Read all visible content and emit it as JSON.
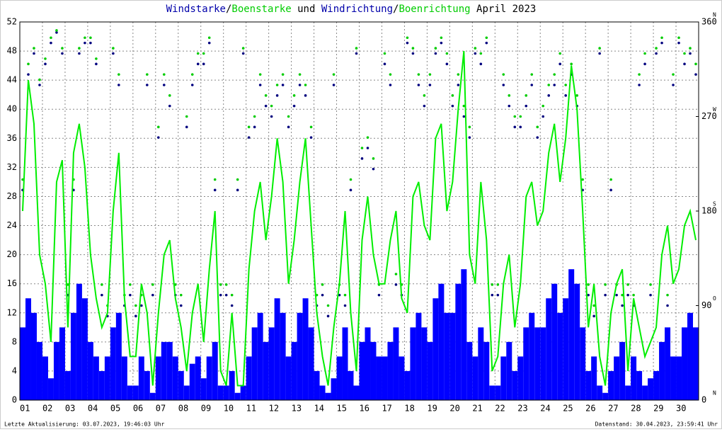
{
  "chart_data": {
    "type": "wind",
    "title_separator": "/",
    "title_joiner": "und",
    "title_period": "April 2023",
    "footer_left": "Letzte Aktualisierung: 03.07.2023, 19:46:03 Uhr",
    "footer_right": "Datenstand: 30.04.2023, 23:59:41 Uhr",
    "xlim": [
      1,
      31
    ],
    "xticks": [
      {
        "value": 1,
        "label": "01"
      },
      {
        "value": 2,
        "label": "02"
      },
      {
        "value": 3,
        "label": "03"
      },
      {
        "value": 4,
        "label": "04"
      },
      {
        "value": 5,
        "label": "05"
      },
      {
        "value": 6,
        "label": "06"
      },
      {
        "value": 7,
        "label": "07"
      },
      {
        "value": 8,
        "label": "08"
      },
      {
        "value": 9,
        "label": "09"
      },
      {
        "value": 10,
        "label": "10"
      },
      {
        "value": 11,
        "label": "11"
      },
      {
        "value": 12,
        "label": "12"
      },
      {
        "value": 13,
        "label": "13"
      },
      {
        "value": 14,
        "label": "14"
      },
      {
        "value": 15,
        "label": "15"
      },
      {
        "value": 16,
        "label": "16"
      },
      {
        "value": 17,
        "label": "17"
      },
      {
        "value": 18,
        "label": "18"
      },
      {
        "value": 19,
        "label": "19"
      },
      {
        "value": 20,
        "label": "20"
      },
      {
        "value": 21,
        "label": "21"
      },
      {
        "value": 22,
        "label": "22"
      },
      {
        "value": 23,
        "label": "23"
      },
      {
        "value": 24,
        "label": "24"
      },
      {
        "value": 25,
        "label": "25"
      },
      {
        "value": 26,
        "label": "26"
      },
      {
        "value": 27,
        "label": "27"
      },
      {
        "value": 28,
        "label": "28"
      },
      {
        "value": 29,
        "label": "29"
      },
      {
        "value": 30,
        "label": "30"
      }
    ],
    "ylim": [
      0,
      52
    ],
    "yticks": [
      0,
      4,
      8,
      12,
      16,
      20,
      24,
      28,
      32,
      36,
      40,
      44,
      48,
      52
    ],
    "y2lim": [
      0,
      360
    ],
    "y2ticks": [
      0,
      90,
      180,
      270,
      360
    ],
    "y2_compass": [
      "N",
      "O",
      "S",
      "W",
      "N"
    ],
    "grid": true,
    "x": [
      1,
      1.25,
      1.5,
      1.75,
      2,
      2.25,
      2.5,
      2.75,
      3,
      3.25,
      3.5,
      3.75,
      4,
      4.25,
      4.5,
      4.75,
      5,
      5.25,
      5.5,
      5.75,
      6,
      6.25,
      6.5,
      6.75,
      7,
      7.25,
      7.5,
      7.75,
      8,
      8.25,
      8.5,
      8.75,
      9,
      9.25,
      9.5,
      9.75,
      10,
      10.25,
      10.5,
      10.75,
      11,
      11.25,
      11.5,
      11.75,
      12,
      12.25,
      12.5,
      12.75,
      13,
      13.25,
      13.5,
      13.75,
      14,
      14.25,
      14.5,
      14.75,
      15,
      15.25,
      15.5,
      15.75,
      16,
      16.25,
      16.5,
      16.75,
      17,
      17.25,
      17.5,
      17.75,
      18,
      18.25,
      18.5,
      18.75,
      19,
      19.25,
      19.5,
      19.75,
      20,
      20.25,
      20.5,
      20.75,
      21,
      21.25,
      21.5,
      21.75,
      22,
      22.25,
      22.5,
      22.75,
      23,
      23.25,
      23.5,
      23.75,
      24,
      24.25,
      24.5,
      24.75,
      25,
      25.25,
      25.5,
      25.75,
      26,
      26.25,
      26.5,
      26.75,
      27,
      27.25,
      27.5,
      27.75,
      28,
      28.25,
      28.5,
      28.75,
      29,
      29.25,
      29.5,
      29.75,
      30,
      30.25,
      30.5,
      30.75
    ],
    "series": [
      {
        "name": "Windstarke",
        "color": "#0000ff",
        "kind": "speed",
        "values": [
          10,
          14,
          12,
          8,
          6,
          3,
          8,
          10,
          4,
          12,
          16,
          14,
          8,
          6,
          4,
          6,
          10,
          12,
          6,
          2,
          2,
          6,
          4,
          1,
          6,
          8,
          8,
          6,
          4,
          2,
          5,
          6,
          3,
          6,
          8,
          2,
          2,
          4,
          1,
          2,
          6,
          10,
          12,
          8,
          10,
          14,
          12,
          6,
          8,
          12,
          14,
          10,
          4,
          2,
          1,
          3,
          6,
          10,
          4,
          2,
          8,
          10,
          8,
          6,
          6,
          8,
          10,
          6,
          4,
          10,
          12,
          10,
          8,
          14,
          16,
          12,
          12,
          16,
          18,
          8,
          6,
          10,
          8,
          2,
          2,
          6,
          8,
          4,
          6,
          10,
          12,
          10,
          10,
          14,
          16,
          12,
          14,
          18,
          16,
          10,
          4,
          6,
          2,
          1,
          4,
          6,
          8,
          2,
          6,
          4,
          2,
          3,
          4,
          8,
          10,
          6,
          6,
          10,
          12,
          10
        ]
      },
      {
        "name": "Boenstarke",
        "color": "#00ee00",
        "kind": "gust",
        "values": [
          26,
          44,
          38,
          20,
          16,
          8,
          30,
          33,
          10,
          34,
          38,
          32,
          20,
          14,
          10,
          12,
          26,
          34,
          14,
          6,
          6,
          16,
          12,
          2,
          12,
          20,
          22,
          14,
          10,
          4,
          12,
          16,
          8,
          18,
          26,
          4,
          2,
          12,
          2,
          2,
          18,
          26,
          30,
          22,
          28,
          36,
          30,
          16,
          22,
          30,
          36,
          24,
          12,
          6,
          2,
          10,
          16,
          26,
          12,
          4,
          22,
          28,
          20,
          16,
          16,
          22,
          26,
          14,
          12,
          28,
          30,
          24,
          22,
          36,
          38,
          26,
          30,
          40,
          48,
          20,
          16,
          30,
          22,
          4,
          6,
          16,
          20,
          10,
          16,
          28,
          30,
          24,
          26,
          34,
          38,
          30,
          36,
          46,
          40,
          26,
          10,
          16,
          6,
          2,
          12,
          16,
          18,
          4,
          14,
          10,
          6,
          8,
          10,
          20,
          24,
          16,
          18,
          24,
          26,
          22
        ]
      },
      {
        "name": "Windrichtung",
        "color": "#00007f",
        "kind": "direction",
        "axis": "y2",
        "values": [
          200,
          310,
          330,
          300,
          320,
          340,
          350,
          330,
          100,
          200,
          330,
          340,
          340,
          320,
          100,
          80,
          330,
          300,
          90,
          100,
          80,
          90,
          300,
          100,
          250,
          300,
          280,
          100,
          90,
          260,
          300,
          320,
          320,
          340,
          200,
          100,
          100,
          90,
          200,
          330,
          250,
          260,
          300,
          280,
          270,
          290,
          300,
          260,
          280,
          300,
          290,
          250,
          90,
          100,
          80,
          300,
          100,
          90,
          200,
          330,
          230,
          240,
          220,
          100,
          320,
          300,
          110,
          100,
          340,
          330,
          300,
          280,
          300,
          330,
          340,
          320,
          280,
          300,
          270,
          250,
          330,
          320,
          340,
          100,
          100,
          300,
          280,
          260,
          260,
          280,
          300,
          250,
          270,
          290,
          300,
          320,
          290,
          310,
          280,
          200,
          100,
          80,
          330,
          100,
          200,
          100,
          90,
          100,
          90,
          300,
          320,
          100,
          330,
          340,
          90,
          300,
          340,
          320,
          330,
          310
        ]
      },
      {
        "name": "Boenrichtung",
        "color": "#00cc00",
        "kind": "direction",
        "axis": "y2",
        "values": [
          210,
          320,
          335,
          305,
          325,
          345,
          352,
          335,
          110,
          210,
          335,
          345,
          345,
          325,
          110,
          90,
          335,
          310,
          100,
          110,
          90,
          100,
          310,
          110,
          260,
          310,
          290,
          110,
          100,
          270,
          310,
          330,
          330,
          345,
          210,
          110,
          110,
          100,
          210,
          335,
          260,
          270,
          310,
          290,
          280,
          300,
          310,
          270,
          290,
          310,
          300,
          260,
          100,
          110,
          90,
          310,
          110,
          100,
          210,
          335,
          240,
          250,
          230,
          110,
          330,
          310,
          120,
          110,
          345,
          335,
          310,
          290,
          310,
          335,
          345,
          330,
          290,
          310,
          280,
          260,
          335,
          330,
          345,
          110,
          110,
          310,
          290,
          270,
          270,
          290,
          310,
          260,
          280,
          300,
          310,
          330,
          300,
          320,
          290,
          210,
          110,
          90,
          335,
          110,
          210,
          110,
          100,
          110,
          100,
          310,
          330,
          110,
          335,
          345,
          100,
          310,
          345,
          330,
          335,
          320
        ]
      }
    ]
  }
}
